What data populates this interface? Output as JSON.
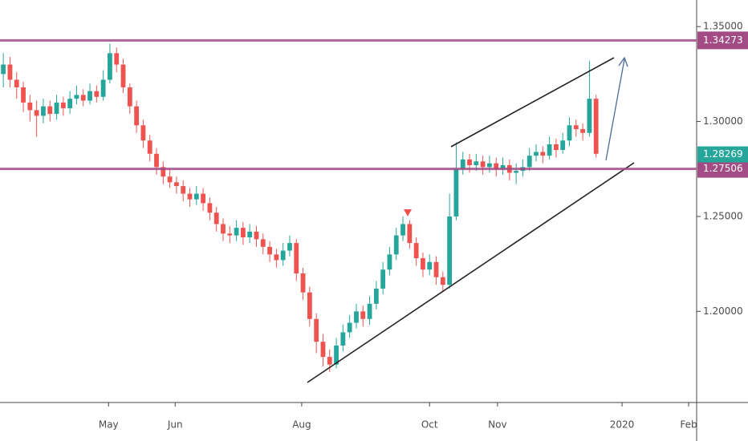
{
  "chart_data": {
    "type": "candlestick",
    "up_color": "#26a69a",
    "down_color": "#ef5350",
    "open": [
      1.325,
      1.33,
      1.322,
      1.318,
      1.31,
      1.306,
      1.303,
      1.308,
      1.304,
      1.31,
      1.307,
      1.312,
      1.314,
      1.311,
      1.316,
      1.313,
      1.322,
      1.336,
      1.33,
      1.318,
      1.308,
      1.298,
      1.29,
      1.283,
      1.276,
      1.271,
      1.268,
      1.266,
      1.262,
      1.259,
      1.262,
      1.257,
      1.252,
      1.246,
      1.241,
      1.24,
      1.244,
      1.239,
      1.242,
      1.238,
      1.234,
      1.23,
      1.227,
      1.232,
      1.236,
      1.22,
      1.21,
      1.196,
      1.184,
      1.176,
      1.172,
      1.182,
      1.189,
      1.194,
      1.2,
      1.196,
      1.204,
      1.212,
      1.222,
      1.23,
      1.24,
      1.246,
      1.236,
      1.228,
      1.222,
      1.226,
      1.218,
      1.214,
      1.25,
      1.275,
      1.28,
      1.277,
      1.279,
      1.276,
      1.278,
      1.275,
      1.277,
      1.273,
      1.274,
      1.276,
      1.282,
      1.284,
      1.282,
      1.288,
      1.285,
      1.29,
      1.298,
      1.296,
      1.294,
      1.312
    ],
    "high": [
      1.336,
      1.334,
      1.326,
      1.321,
      1.314,
      1.311,
      1.312,
      1.311,
      1.314,
      1.313,
      1.316,
      1.319,
      1.317,
      1.32,
      1.319,
      1.327,
      1.341,
      1.339,
      1.333,
      1.32,
      1.311,
      1.301,
      1.293,
      1.286,
      1.279,
      1.275,
      1.271,
      1.269,
      1.265,
      1.266,
      1.265,
      1.26,
      1.255,
      1.249,
      1.245,
      1.248,
      1.247,
      1.246,
      1.245,
      1.241,
      1.237,
      1.233,
      1.236,
      1.24,
      1.238,
      1.223,
      1.213,
      1.199,
      1.188,
      1.18,
      1.186,
      1.193,
      1.198,
      1.204,
      1.203,
      1.208,
      1.216,
      1.226,
      1.234,
      1.244,
      1.25,
      1.248,
      1.239,
      1.231,
      1.23,
      1.229,
      1.221,
      1.262,
      1.289,
      1.284,
      1.283,
      1.283,
      1.282,
      1.282,
      1.281,
      1.281,
      1.28,
      1.278,
      1.28,
      1.286,
      1.288,
      1.287,
      1.292,
      1.291,
      1.294,
      1.302,
      1.301,
      1.299,
      1.332,
      1.314
    ],
    "low": [
      1.318,
      1.318,
      1.312,
      1.305,
      1.3,
      1.292,
      1.299,
      1.3,
      1.301,
      1.303,
      1.304,
      1.309,
      1.308,
      1.309,
      1.31,
      1.311,
      1.32,
      1.326,
      1.315,
      1.304,
      1.294,
      1.286,
      1.279,
      1.272,
      1.267,
      1.265,
      1.262,
      1.258,
      1.255,
      1.256,
      1.253,
      1.248,
      1.242,
      1.237,
      1.236,
      1.237,
      1.235,
      1.236,
      1.234,
      1.23,
      1.226,
      1.223,
      1.224,
      1.229,
      1.216,
      1.206,
      1.192,
      1.178,
      1.171,
      1.168,
      1.17,
      1.179,
      1.186,
      1.191,
      1.192,
      1.193,
      1.201,
      1.209,
      1.219,
      1.227,
      1.237,
      1.233,
      1.224,
      1.218,
      1.219,
      1.214,
      1.21,
      1.212,
      1.248,
      1.272,
      1.273,
      1.274,
      1.272,
      1.273,
      1.271,
      1.272,
      1.269,
      1.267,
      1.271,
      1.274,
      1.279,
      1.278,
      1.28,
      1.281,
      1.283,
      1.287,
      1.292,
      1.29,
      1.292,
      1.281
    ],
    "close": [
      1.33,
      1.322,
      1.318,
      1.31,
      1.306,
      1.303,
      1.308,
      1.304,
      1.31,
      1.307,
      1.312,
      1.314,
      1.311,
      1.316,
      1.313,
      1.322,
      1.336,
      1.33,
      1.318,
      1.308,
      1.298,
      1.29,
      1.283,
      1.276,
      1.271,
      1.268,
      1.266,
      1.262,
      1.259,
      1.262,
      1.257,
      1.252,
      1.246,
      1.241,
      1.24,
      1.244,
      1.239,
      1.242,
      1.238,
      1.234,
      1.23,
      1.227,
      1.232,
      1.236,
      1.22,
      1.21,
      1.196,
      1.184,
      1.176,
      1.172,
      1.182,
      1.189,
      1.194,
      1.2,
      1.196,
      1.204,
      1.212,
      1.222,
      1.23,
      1.24,
      1.246,
      1.236,
      1.228,
      1.222,
      1.226,
      1.218,
      1.214,
      1.25,
      1.275,
      1.28,
      1.277,
      1.279,
      1.276,
      1.278,
      1.275,
      1.277,
      1.273,
      1.274,
      1.276,
      1.282,
      1.284,
      1.282,
      1.288,
      1.285,
      1.29,
      1.298,
      1.296,
      1.294,
      1.312,
      1.283
    ],
    "xlim": [
      -0.5,
      104.1
    ],
    "xticks": [
      {
        "value": 15.8,
        "label": "May"
      },
      {
        "value": 25.8,
        "label": "Jun"
      },
      {
        "value": 44.8,
        "label": "Aug"
      },
      {
        "value": 64,
        "label": "Oct"
      },
      {
        "value": 74.2,
        "label": "Nov"
      },
      {
        "value": 92.9,
        "label": "2020"
      },
      {
        "value": 102.9,
        "label": "Feb"
      }
    ],
    "ylim": [
      1.152,
      1.364
    ],
    "yticks": [
      {
        "value": 1.35,
        "label": "1.35000"
      },
      {
        "value": 1.3,
        "label": "1.30000"
      },
      {
        "value": 1.25,
        "label": "1.25000"
      },
      {
        "value": 1.2,
        "label": "1.20000"
      }
    ],
    "levels": [
      {
        "value": 1.34273,
        "color": "#a34b85"
      },
      {
        "value": 1.27506,
        "color": "#a34b85"
      }
    ],
    "last_price": {
      "value": 1.28269,
      "color": "#26a69a"
    }
  }
}
